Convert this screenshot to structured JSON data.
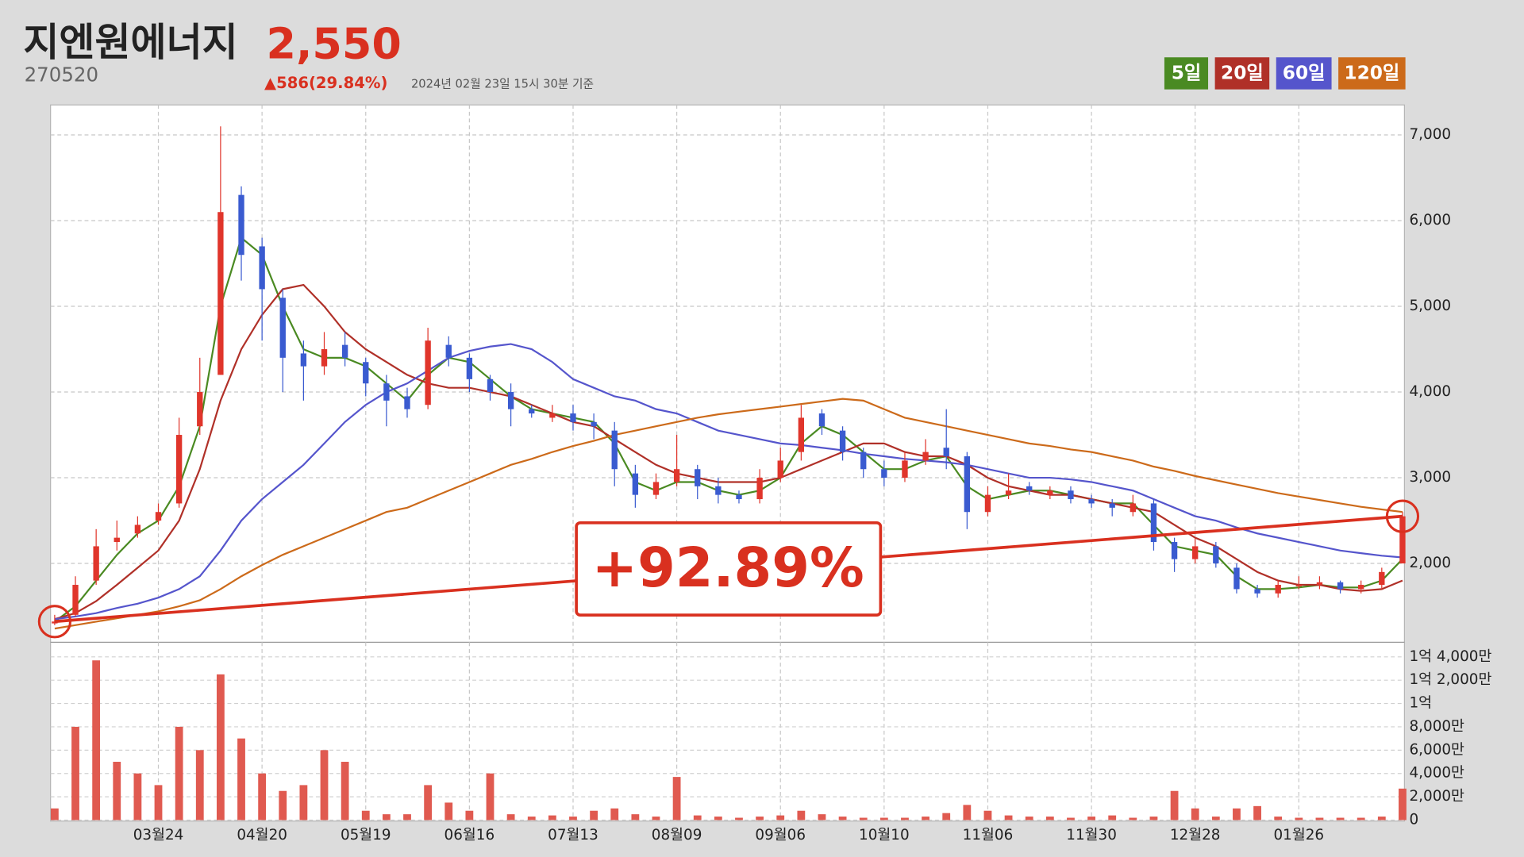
{
  "header": {
    "name": "지엔원에너지",
    "price": "2,550",
    "code": "270520",
    "change": "▲586(29.84%)",
    "timestamp": "2024년 02월 23일 15시 30분 기준"
  },
  "chart_data": {
    "type": "candlestick",
    "annotation": "+92.89%",
    "xlim": [
      -0.2,
      65
    ],
    "xticks": [
      {
        "value": 5,
        "label": "03월24"
      },
      {
        "value": 10,
        "label": "04월20"
      },
      {
        "value": 15,
        "label": "05월19"
      },
      {
        "value": 20,
        "label": "06월16"
      },
      {
        "value": 25,
        "label": "07월13"
      },
      {
        "value": 30,
        "label": "08월09"
      },
      {
        "value": 35,
        "label": "09월06"
      },
      {
        "value": 40,
        "label": "10월10"
      },
      {
        "value": 45,
        "label": "11월06"
      },
      {
        "value": 50,
        "label": "11월30"
      },
      {
        "value": 55,
        "label": "12월28"
      },
      {
        "value": 60,
        "label": "01월26"
      }
    ],
    "ylim": [
      1080,
      7350
    ],
    "yticks": [
      {
        "value": 2000,
        "label": "2,000"
      },
      {
        "value": 3000,
        "label": "3,000"
      },
      {
        "value": 4000,
        "label": "4,000"
      },
      {
        "value": 5000,
        "label": "5,000"
      },
      {
        "value": 6000,
        "label": "6,000"
      },
      {
        "value": 7000,
        "label": "7,000"
      }
    ],
    "grid": true,
    "up_color": "#e0352b",
    "down_color": "#3a5bd0",
    "open": [
      1300,
      1400,
      1800,
      2250,
      2350,
      2500,
      2700,
      3600,
      4200,
      6300,
      5700,
      5100,
      4450,
      4300,
      4550,
      4350,
      4100,
      3950,
      3850,
      4550,
      4400,
      4150,
      4000,
      3800,
      3700,
      3750,
      3650,
      3550,
      3050,
      2800,
      2950,
      3100,
      2900,
      2800,
      2750,
      3000,
      3300,
      3750,
      3550,
      3300,
      3100,
      3000,
      3200,
      3350,
      3250,
      2600,
      2800,
      2900,
      2800,
      2850,
      2750,
      2700,
      2600,
      2700,
      2250,
      2050,
      2200,
      1950,
      1700,
      1650,
      1750,
      1750,
      1780,
      1700,
      1750,
      2000
    ],
    "high": [
      1400,
      1850,
      2400,
      2500,
      2550,
      2700,
      3700,
      4400,
      7100,
      6400,
      5800,
      5200,
      4600,
      4700,
      4700,
      4400,
      4200,
      4050,
      4750,
      4650,
      4450,
      4200,
      4100,
      3850,
      3850,
      3850,
      3750,
      3650,
      3150,
      3050,
      3500,
      3150,
      3000,
      2850,
      3100,
      3350,
      3850,
      3800,
      3600,
      3350,
      3200,
      3300,
      3450,
      3800,
      3300,
      2900,
      3050,
      2950,
      2900,
      2900,
      2800,
      2750,
      2800,
      2750,
      2300,
      2300,
      2250,
      2000,
      1750,
      1800,
      1850,
      1850,
      1800,
      1800,
      1950,
      2600
    ],
    "low": [
      1280,
      1380,
      1750,
      2150,
      2300,
      2450,
      2650,
      3500,
      4200,
      5300,
      4600,
      4000,
      3900,
      4200,
      4300,
      3950,
      3600,
      3700,
      3800,
      4300,
      4000,
      3900,
      3600,
      3700,
      3650,
      3550,
      3450,
      2900,
      2650,
      2750,
      2900,
      2750,
      2700,
      2700,
      2700,
      2950,
      3200,
      3500,
      3200,
      3000,
      2900,
      2950,
      3150,
      3100,
      2400,
      2550,
      2750,
      2800,
      2750,
      2700,
      2650,
      2550,
      2550,
      2150,
      1900,
      2000,
      1950,
      1650,
      1600,
      1600,
      1700,
      1700,
      1650,
      1650,
      1700,
      2000
    ],
    "close": [
      1322,
      1750,
      2200,
      2300,
      2450,
      2600,
      3500,
      4000,
      6100,
      5600,
      5200,
      4400,
      4300,
      4500,
      4400,
      4100,
      3900,
      3800,
      4600,
      4400,
      4150,
      4000,
      3800,
      3750,
      3750,
      3650,
      3600,
      3100,
      2800,
      2950,
      3100,
      2900,
      2800,
      2750,
      3000,
      3200,
      3700,
      3600,
      3300,
      3100,
      3000,
      3200,
      3300,
      3250,
      2600,
      2800,
      2850,
      2850,
      2850,
      2750,
      2700,
      2650,
      2700,
      2250,
      2050,
      2200,
      2000,
      1700,
      1650,
      1750,
      1750,
      1780,
      1700,
      1750,
      1900,
      2550
    ],
    "series": [
      {
        "name": "5일",
        "color": "#4a8a22",
        "values": [
          1322,
          1500,
          1800,
          2100,
          2350,
          2500,
          2900,
          3600,
          5000,
          5800,
          5600,
          5000,
          4500,
          4400,
          4400,
          4300,
          4100,
          3900,
          4200,
          4400,
          4350,
          4150,
          3950,
          3800,
          3750,
          3700,
          3650,
          3400,
          2950,
          2850,
          2950,
          2950,
          2850,
          2800,
          2850,
          3000,
          3400,
          3600,
          3500,
          3300,
          3100,
          3100,
          3200,
          3250,
          2900,
          2750,
          2800,
          2850,
          2850,
          2800,
          2750,
          2700,
          2700,
          2450,
          2200,
          2150,
          2100,
          1850,
          1700,
          1700,
          1720,
          1750,
          1720,
          1720,
          1800,
          2050
        ]
      },
      {
        "name": "20일",
        "color": "#b03028",
        "values": [
          1350,
          1420,
          1560,
          1750,
          1950,
          2150,
          2500,
          3100,
          3900,
          4500,
          4900,
          5200,
          5250,
          5000,
          4700,
          4500,
          4350,
          4200,
          4100,
          4050,
          4050,
          4000,
          3950,
          3850,
          3750,
          3650,
          3600,
          3450,
          3300,
          3150,
          3050,
          3000,
          2950,
          2950,
          2950,
          3000,
          3100,
          3200,
          3300,
          3400,
          3400,
          3300,
          3250,
          3250,
          3150,
          3000,
          2900,
          2850,
          2800,
          2800,
          2750,
          2700,
          2650,
          2600,
          2450,
          2300,
          2200,
          2050,
          1900,
          1800,
          1750,
          1750,
          1700,
          1680,
          1700,
          1800
        ]
      },
      {
        "name": "60일",
        "color": "#5555cc",
        "values": [
          1350,
          1380,
          1420,
          1480,
          1530,
          1600,
          1700,
          1850,
          2150,
          2500,
          2750,
          2950,
          3150,
          3400,
          3650,
          3850,
          4000,
          4100,
          4250,
          4400,
          4480,
          4530,
          4560,
          4500,
          4350,
          4150,
          4050,
          3950,
          3900,
          3800,
          3750,
          3650,
          3550,
          3500,
          3450,
          3400,
          3380,
          3350,
          3320,
          3280,
          3250,
          3220,
          3200,
          3180,
          3150,
          3100,
          3050,
          3000,
          3000,
          2980,
          2950,
          2900,
          2850,
          2750,
          2650,
          2550,
          2500,
          2420,
          2350,
          2300,
          2250,
          2200,
          2150,
          2120,
          2090,
          2070
        ]
      },
      {
        "name": "120일",
        "color": "#cc6a1a",
        "values": [
          1240,
          1280,
          1320,
          1360,
          1400,
          1440,
          1500,
          1570,
          1700,
          1850,
          1980,
          2100,
          2200,
          2300,
          2400,
          2500,
          2600,
          2650,
          2750,
          2850,
          2950,
          3050,
          3150,
          3220,
          3300,
          3370,
          3430,
          3500,
          3550,
          3600,
          3650,
          3700,
          3740,
          3770,
          3800,
          3830,
          3860,
          3890,
          3920,
          3900,
          3800,
          3700,
          3650,
          3600,
          3550,
          3500,
          3450,
          3400,
          3370,
          3330,
          3300,
          3250,
          3200,
          3130,
          3080,
          3020,
          2970,
          2920,
          2870,
          2820,
          2780,
          2740,
          2700,
          2660,
          2630,
          2600
        ]
      }
    ],
    "volume": {
      "color": "#e05a50",
      "ylim": [
        0,
        151700000
      ],
      "yticks": [
        0,
        {
          "value": 20000000,
          "label": "2,000만"
        },
        {
          "value": 40000000,
          "label": "4,000만"
        },
        {
          "value": 60000000,
          "label": "6,000만"
        },
        {
          "value": 80000000,
          "label": "8,000만"
        },
        {
          "value": 100000000,
          "label": "1억"
        },
        {
          "value": 120000000,
          "label": "1억 2,000만"
        },
        {
          "value": 140000000,
          "label": "1억 4,000만"
        }
      ],
      "values": [
        10000000,
        80000000,
        137000000,
        50000000,
        40000000,
        30000000,
        80000000,
        60000000,
        125000000,
        70000000,
        40000000,
        25000000,
        30000000,
        60000000,
        50000000,
        8000000,
        5000000,
        5000000,
        30000000,
        15000000,
        8000000,
        40000000,
        5000000,
        3000000,
        4000000,
        3000000,
        8000000,
        10000000,
        5000000,
        3000000,
        37000000,
        4000000,
        3000000,
        2000000,
        3000000,
        4000000,
        8000000,
        5000000,
        3000000,
        2000000,
        2000000,
        2000000,
        3000000,
        6000000,
        13000000,
        8000000,
        4000000,
        3000000,
        3000000,
        2000000,
        3000000,
        4000000,
        2000000,
        3000000,
        25000000,
        10000000,
        3000000,
        10000000,
        12000000,
        3000000,
        2000000,
        2000000,
        2000000,
        2000000,
        3000000,
        27000000
      ]
    }
  }
}
